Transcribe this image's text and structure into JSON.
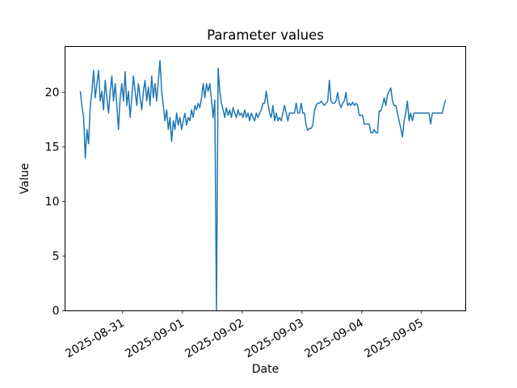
{
  "figure": {
    "background": "#ffffff"
  },
  "chart_data": {
    "type": "line",
    "title": "Parameter values",
    "xlabel": "Date",
    "ylabel": "Value",
    "line_color": "#1f77b4",
    "axis_color": "#000000",
    "grid": false,
    "legend": "none",
    "ylim": [
      0,
      24.2
    ],
    "y_ticks": [
      0,
      5,
      10,
      15,
      20
    ],
    "x_origin": "2025-08-31",
    "xlim_days": [
      -0.964,
      5.739
    ],
    "x_ticks": [
      {
        "day_offset": 0,
        "label": "2025-08-31"
      },
      {
        "day_offset": 1,
        "label": "2025-09-01"
      },
      {
        "day_offset": 2,
        "label": "2025-09-02"
      },
      {
        "day_offset": 3,
        "label": "2025-09-03"
      },
      {
        "day_offset": 4,
        "label": "2025-09-04"
      },
      {
        "day_offset": 5,
        "label": "2025-09-05"
      }
    ],
    "series": [
      {
        "name": "Value",
        "start": "2025-08-30T07:00",
        "step_minutes": 40,
        "values": [
          20.1,
          18.7,
          17.7,
          14.0,
          16.6,
          15.3,
          18.8,
          20.1,
          22.0,
          19.5,
          20.8,
          22.0,
          19.2,
          20.1,
          18.4,
          21.1,
          19.5,
          18.1,
          20.1,
          21.5,
          19.2,
          20.8,
          18.8,
          16.6,
          19.5,
          20.8,
          19.2,
          21.9,
          18.8,
          20.1,
          17.7,
          19.5,
          21.5,
          20.1,
          18.8,
          20.8,
          19.5,
          18.4,
          20.1,
          21.1,
          19.2,
          20.5,
          18.8,
          21.5,
          19.5,
          20.8,
          19.2,
          21.1,
          22.9,
          20.1,
          18.8,
          17.4,
          18.4,
          16.6,
          17.7,
          15.5,
          17.4,
          16.6,
          18.1,
          17.0,
          17.7,
          16.6,
          17.4,
          18.1,
          17.0,
          17.7,
          17.4,
          18.4,
          17.7,
          18.8,
          18.4,
          19.0,
          18.6,
          19.5,
          20.8,
          19.5,
          20.8,
          20.1,
          20.8,
          19.3,
          17.7,
          19.3,
          0.0,
          22.2,
          20.1,
          19.0,
          18.4,
          17.7,
          18.6,
          17.9,
          18.4,
          17.7,
          18.6,
          18.1,
          17.7,
          18.4,
          17.9,
          18.1,
          17.7,
          18.4,
          17.7,
          18.1,
          17.4,
          18.1,
          17.7,
          17.4,
          18.1,
          17.7,
          18.1,
          18.4,
          19.0,
          19.0,
          20.1,
          19.0,
          18.1,
          17.7,
          18.8,
          17.4,
          18.1,
          17.4,
          17.7,
          17.4,
          18.1,
          18.8,
          18.1,
          17.4,
          18.1,
          18.1,
          18.1,
          18.1,
          19.0,
          18.1,
          18.1,
          19.0,
          18.1,
          18.1,
          17.0,
          16.5,
          16.7,
          16.7,
          17.0,
          18.3,
          18.8,
          19.0,
          19.0,
          19.2,
          19.0,
          18.8,
          19.0,
          19.2,
          21.1,
          19.2,
          19.0,
          19.0,
          19.2,
          20.0,
          19.0,
          18.6,
          19.0,
          19.2,
          20.0,
          18.8,
          19.0,
          18.8,
          19.1,
          18.8,
          19.0,
          18.8,
          17.9,
          17.9,
          17.9,
          17.1,
          17.1,
          17.1,
          17.1,
          16.3,
          16.3,
          16.6,
          16.3,
          16.3,
          18.3,
          18.3,
          18.8,
          19.5,
          18.8,
          19.8,
          20.1,
          20.4,
          19.2,
          18.8,
          18.8,
          18.1,
          17.4,
          16.7,
          15.9,
          17.4,
          18.1,
          19.2,
          17.4,
          18.1,
          17.4,
          18.1,
          18.1,
          18.1,
          18.1,
          18.1,
          18.1,
          18.1,
          18.1,
          18.1,
          18.1,
          17.1,
          18.1,
          18.1,
          18.1,
          18.1,
          18.1,
          18.1,
          18.1,
          18.8,
          19.3
        ]
      }
    ]
  }
}
